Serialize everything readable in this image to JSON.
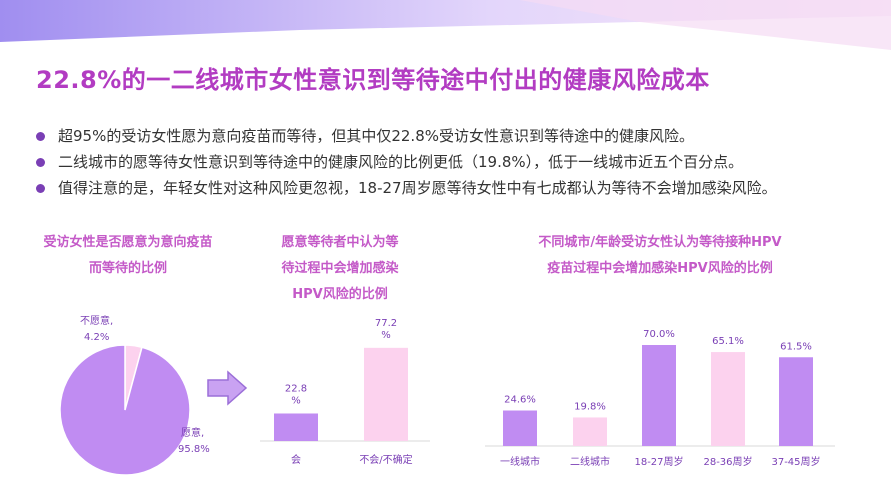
{
  "title": "22.8%的一二线城市女性意识到等待途中付出的健康风险成本",
  "bullets": [
    "超95%的受访女性愿为意向疫苗而等待，但其中仅22.8%受访女性意识到等待途中的健康风险。",
    "二线城市的愿等待女性意识到等待途中的健康风险的比例更低（19.8%），低于一线城市近五个百分点。",
    "值得注意的是，年轻女性对这种风险更忽视，18-27周岁愿等待女性中有七成都认为等待不会增加感染风险。"
  ],
  "colors": {
    "title": "#b23cc2",
    "bullet_dot": "#7a3fb5",
    "chart_title": "#c45ac8",
    "purple": "#c08cf2",
    "pink": "#fcd2ee",
    "label": "#7a3fb5"
  },
  "chart_data": [
    {
      "type": "pie",
      "title": "受访女性是否愿意为意向疫苗而等待的比例",
      "title_lines": [
        "受访女性是否愿意为意向疫苗",
        "而等待的比例"
      ],
      "slices": [
        {
          "label": "愿意,",
          "value": 95.8,
          "value_label": "95.8%",
          "color": "#c08cf2"
        },
        {
          "label": "不愿意,",
          "value": 4.2,
          "value_label": "4.2%",
          "color": "#fcd2ee"
        }
      ]
    },
    {
      "type": "bar",
      "title": "愿意等待者中认为等待过程中会增加感染HPV风险的比例",
      "title_lines": [
        "愿意等待者中认为等",
        "待过程中会增加感染",
        "HPV风险的比例"
      ],
      "categories": [
        "会",
        "不会/不确定"
      ],
      "values": [
        22.8,
        77.2
      ],
      "value_labels": [
        [
          "22.8",
          "%"
        ],
        [
          "77.2",
          "%"
        ]
      ],
      "colors": [
        "#c08cf2",
        "#fcd2ee"
      ],
      "ylim": [
        0,
        100
      ]
    },
    {
      "type": "bar",
      "title": "不同城市/年龄受访女性认为等待接种HPV疫苗过程中会增加感染HPV风险的比例",
      "title_lines": [
        "不同城市/年龄受访女性认为等待接种HPV",
        "疫苗过程中会增加感染HPV风险的比例"
      ],
      "categories": [
        "一线城市",
        "二线城市",
        "18-27周岁",
        "28-36周岁",
        "37-45周岁"
      ],
      "values": [
        24.6,
        19.8,
        70.0,
        65.1,
        61.5
      ],
      "value_labels": [
        "24.6%",
        "19.8%",
        "70.0%",
        "65.1%",
        "61.5%"
      ],
      "colors": [
        "#c08cf2",
        "#fcd2ee",
        "#c08cf2",
        "#fcd2ee",
        "#c08cf2"
      ],
      "ylim": [
        0,
        100
      ]
    }
  ]
}
